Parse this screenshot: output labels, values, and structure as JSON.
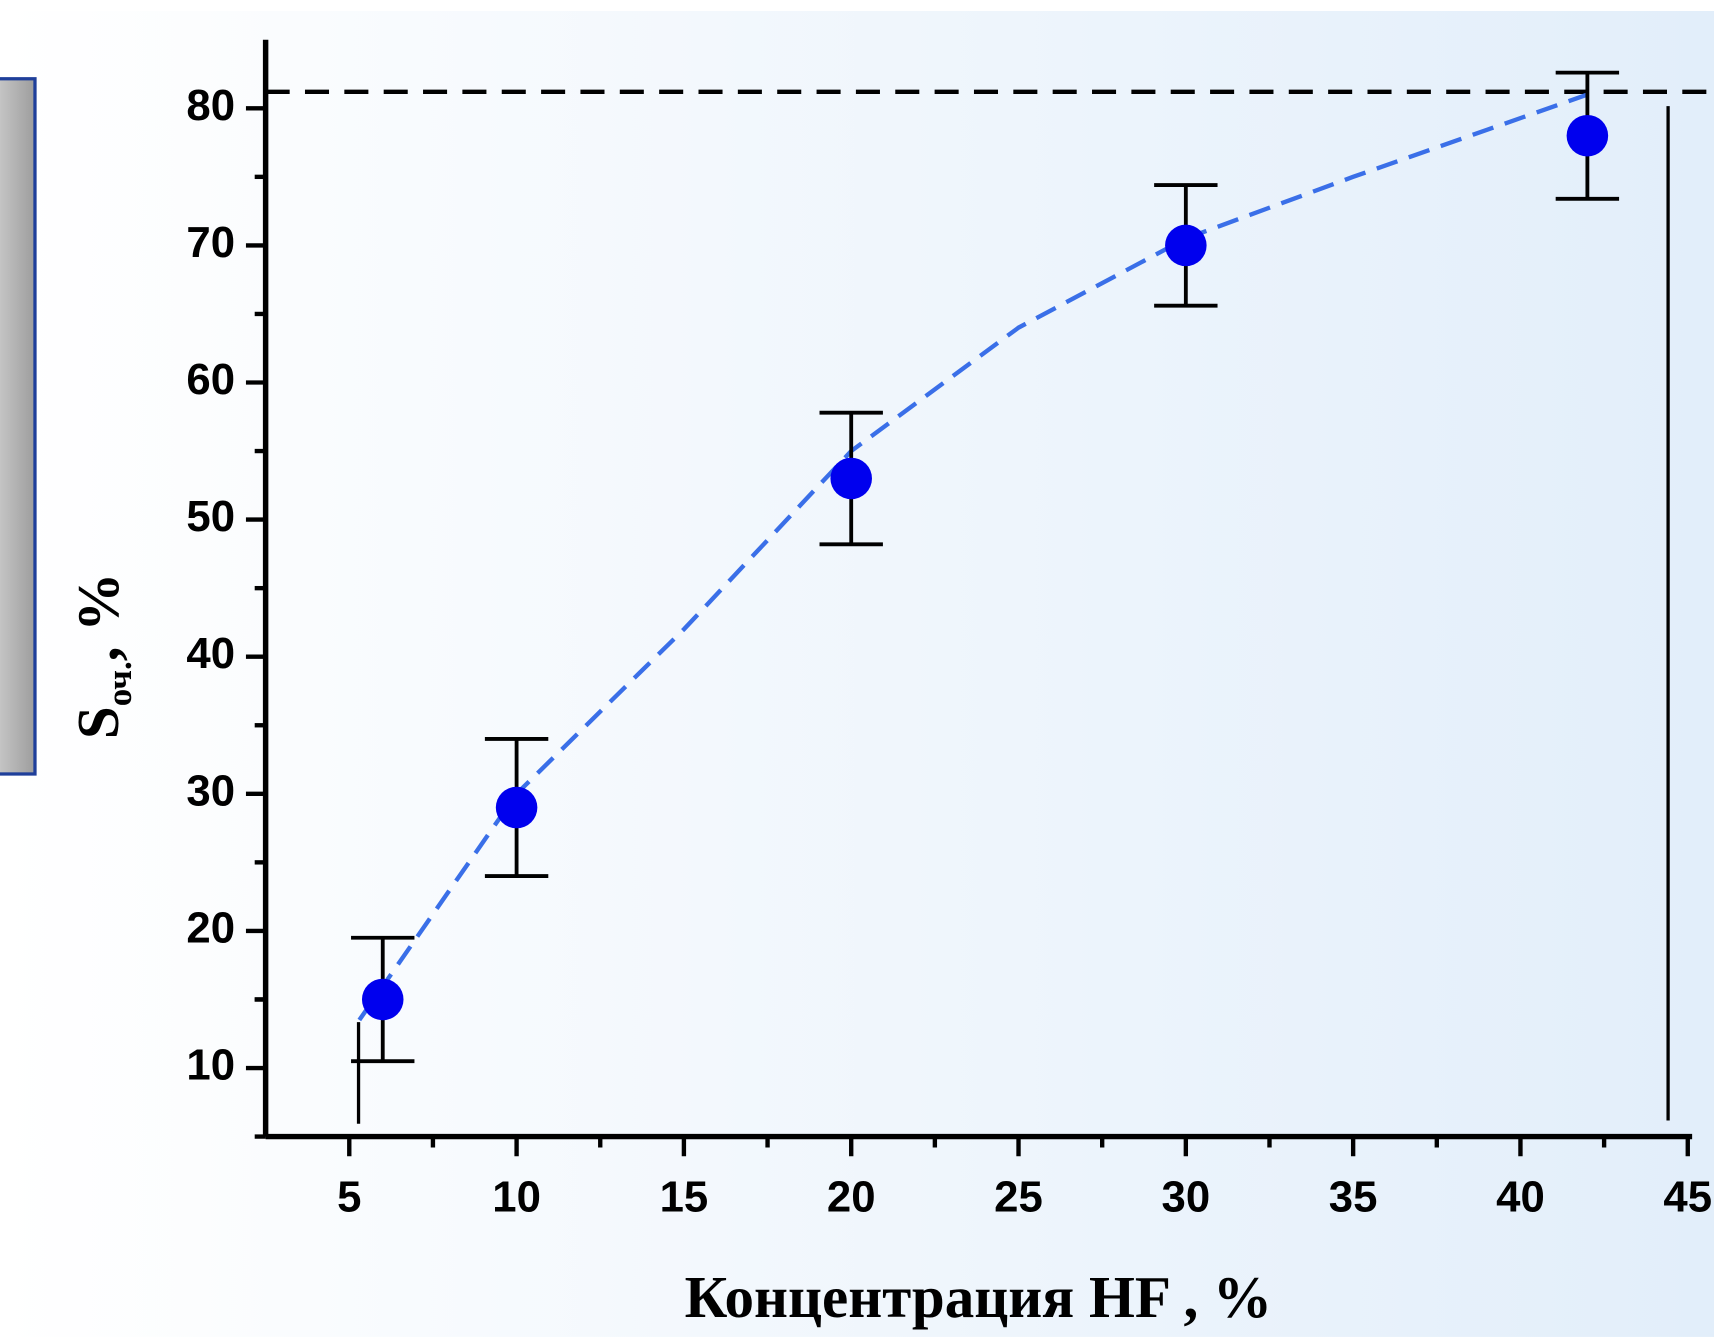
{
  "chart_data": {
    "type": "scatter",
    "xlabel": "Концентрация  HF ,  %",
    "ylabel": "S",
    "ylabel_sub": "оч.",
    "ylabel_unit": ",  %",
    "xlim": [
      2.5,
      45
    ],
    "ylim": [
      5,
      85
    ],
    "xticks": [
      5,
      10,
      15,
      20,
      25,
      30,
      35,
      40,
      45
    ],
    "yticks": [
      10,
      20,
      30,
      40,
      50,
      60,
      70,
      80
    ],
    "reference_line": 81.2,
    "series": [
      {
        "color": "#0000ee",
        "x": [
          6,
          10,
          20,
          30,
          42
        ],
        "values": [
          15,
          29,
          53,
          70,
          78
        ],
        "errors": [
          4.5,
          5,
          4.8,
          4.4,
          4.6
        ]
      },
      {
        "color": "#3a6fe8",
        "x": [
          5.3,
          10,
          15,
          20,
          25,
          30,
          35,
          42
        ],
        "values": [
          13.5,
          30,
          42,
          55,
          64,
          70.5,
          75,
          81
        ]
      }
    ]
  }
}
